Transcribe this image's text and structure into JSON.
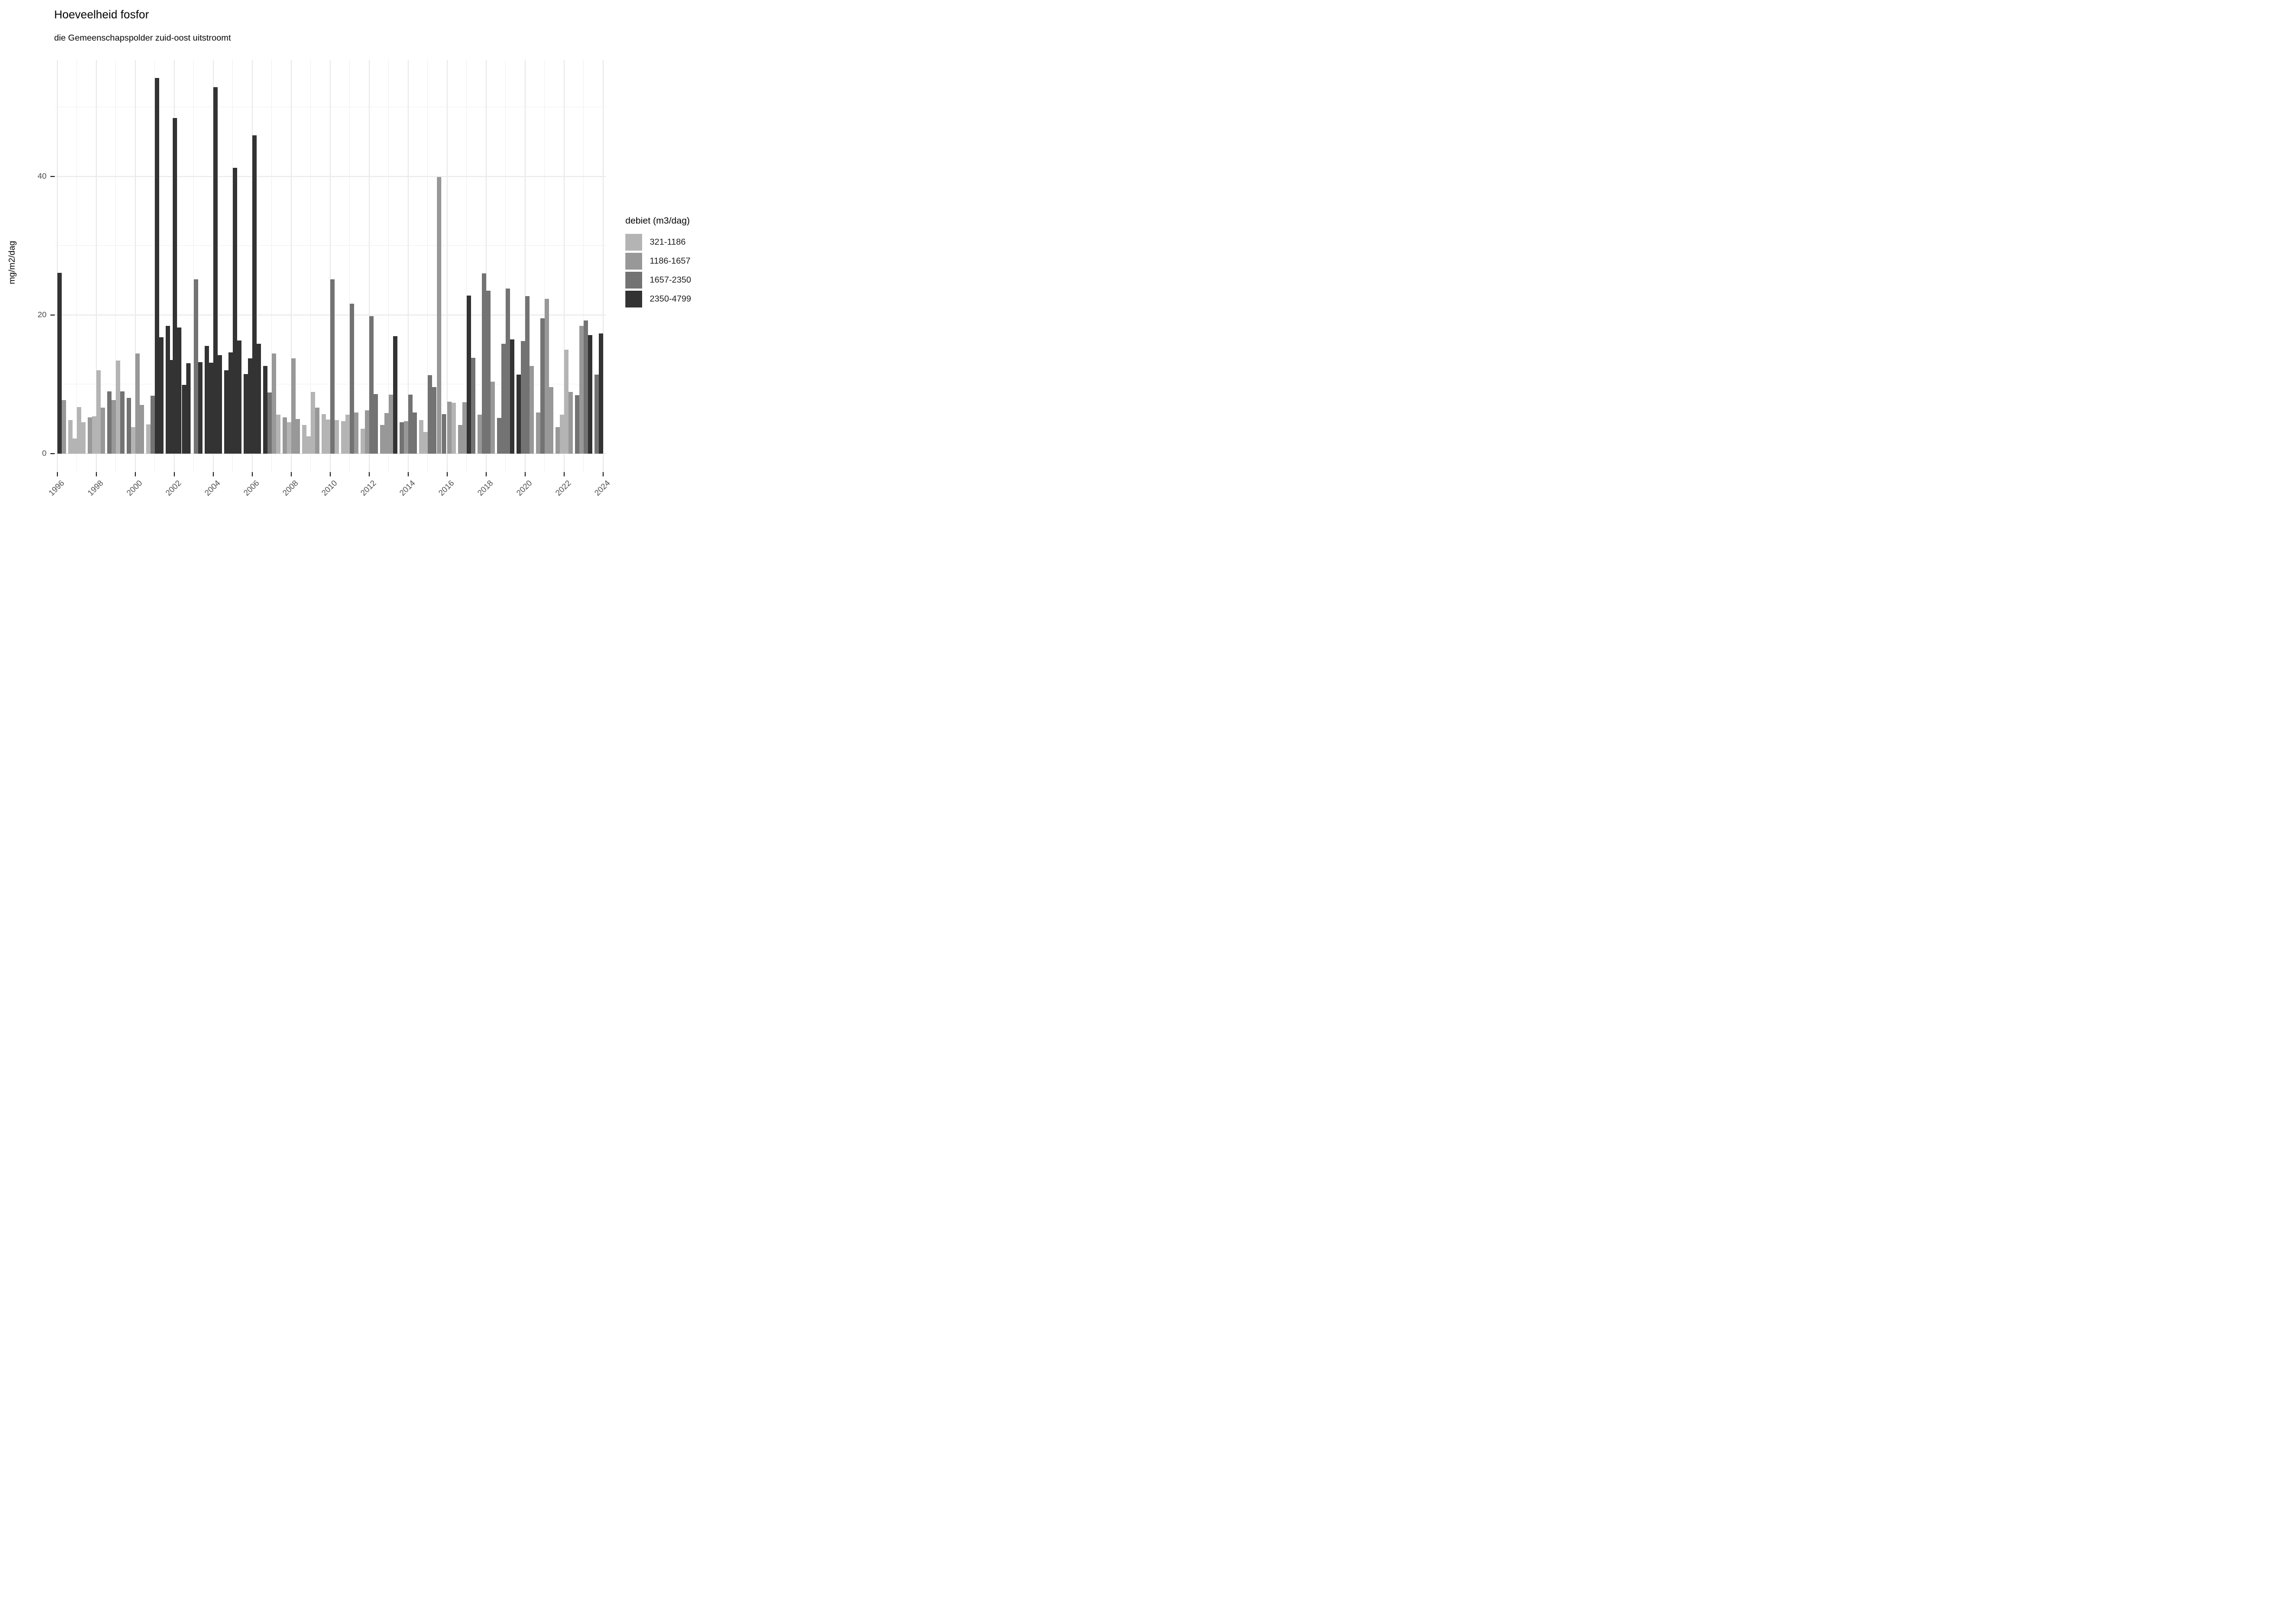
{
  "chart_data": {
    "type": "bar",
    "title": "Hoeveelheid fosfor",
    "subtitle": "die Gemeenschapspolder zuid-oost uitstroomt",
    "ylabel": "mg/m2/dag",
    "xlabel": "",
    "legend_title": "debiet (m3/dag)",
    "legend_position": "right",
    "grid": "on",
    "ylim": [
      0,
      57
    ],
    "y_ticks": [
      0,
      20,
      40
    ],
    "y_minor": [
      10,
      30,
      50
    ],
    "x_ticks": [
      1996,
      1998,
      2000,
      2002,
      2004,
      2006,
      2008,
      2010,
      2012,
      2014,
      2016,
      2018,
      2020,
      2022,
      2024
    ],
    "x_minor": [
      1997,
      1999,
      2001,
      2003,
      2005,
      2007,
      2009,
      2011,
      2013,
      2015,
      2017,
      2019,
      2021,
      2023
    ],
    "x_range": [
      1995.6,
      2024.45
    ],
    "classes": [
      {
        "label": "321-1186",
        "color": "#b4b4b4"
      },
      {
        "label": "1186-1657",
        "color": "#989898"
      },
      {
        "label": "1657-2350",
        "color": "#737373"
      },
      {
        "label": "2350-4799",
        "color": "#333333"
      }
    ],
    "bars_format": "[x_decimal_year, value_mg_m2_dag, debiet_class_index(1-4)]",
    "bars": [
      [
        1996.12,
        26.1,
        4
      ],
      [
        1996.34,
        7.7,
        2
      ],
      [
        1996.67,
        4.8,
        1
      ],
      [
        1996.9,
        2.2,
        1
      ],
      [
        1997.12,
        6.7,
        1
      ],
      [
        1997.34,
        4.5,
        1
      ],
      [
        1997.67,
        5.2,
        2
      ],
      [
        1997.9,
        5.4,
        1
      ],
      [
        1998.12,
        12.0,
        1
      ],
      [
        1998.34,
        6.6,
        2
      ],
      [
        1998.67,
        9.0,
        3
      ],
      [
        1998.9,
        7.7,
        2
      ],
      [
        1999.12,
        13.4,
        1
      ],
      [
        1999.34,
        9.0,
        3
      ],
      [
        1999.67,
        8.0,
        3
      ],
      [
        1999.9,
        3.8,
        1
      ],
      [
        2000.12,
        14.4,
        2
      ],
      [
        2000.34,
        7.0,
        2
      ],
      [
        2000.67,
        4.2,
        1
      ],
      [
        2000.9,
        8.3,
        3
      ],
      [
        2001.12,
        54.2,
        4
      ],
      [
        2001.34,
        16.8,
        4
      ],
      [
        2001.67,
        18.4,
        4
      ],
      [
        2001.9,
        13.5,
        4
      ],
      [
        2002.04,
        48.4,
        4
      ],
      [
        2002.26,
        18.2,
        4
      ],
      [
        2002.5,
        9.9,
        4
      ],
      [
        2002.72,
        13.0,
        4
      ],
      [
        2003.12,
        25.1,
        3
      ],
      [
        2003.34,
        13.2,
        4
      ],
      [
        2003.67,
        15.5,
        4
      ],
      [
        2003.9,
        13.1,
        4
      ],
      [
        2004.12,
        52.9,
        4
      ],
      [
        2004.34,
        14.2,
        4
      ],
      [
        2004.67,
        12.0,
        4
      ],
      [
        2004.9,
        14.6,
        4
      ],
      [
        2005.12,
        41.2,
        4
      ],
      [
        2005.34,
        16.3,
        4
      ],
      [
        2005.67,
        11.5,
        4
      ],
      [
        2005.9,
        13.7,
        4
      ],
      [
        2006.12,
        45.9,
        4
      ],
      [
        2006.34,
        15.8,
        4
      ],
      [
        2006.67,
        12.6,
        4
      ],
      [
        2006.9,
        8.8,
        3
      ],
      [
        2007.12,
        14.4,
        2
      ],
      [
        2007.34,
        5.6,
        1
      ],
      [
        2007.67,
        5.2,
        2
      ],
      [
        2007.9,
        4.5,
        1
      ],
      [
        2008.12,
        13.7,
        2
      ],
      [
        2008.34,
        5.0,
        2
      ],
      [
        2008.67,
        4.1,
        1
      ],
      [
        2008.9,
        2.5,
        1
      ],
      [
        2009.12,
        8.9,
        1
      ],
      [
        2009.34,
        6.6,
        2
      ],
      [
        2009.67,
        5.7,
        1
      ],
      [
        2009.9,
        4.9,
        1
      ],
      [
        2010.12,
        25.1,
        3
      ],
      [
        2010.34,
        4.8,
        1
      ],
      [
        2010.67,
        4.7,
        1
      ],
      [
        2010.9,
        5.6,
        1
      ],
      [
        2011.12,
        21.6,
        3
      ],
      [
        2011.34,
        5.9,
        2
      ],
      [
        2011.67,
        3.6,
        1
      ],
      [
        2011.9,
        6.2,
        2
      ],
      [
        2012.12,
        19.8,
        3
      ],
      [
        2012.34,
        8.6,
        3
      ],
      [
        2012.67,
        4.1,
        2
      ],
      [
        2012.9,
        5.8,
        2
      ],
      [
        2013.12,
        8.5,
        2
      ],
      [
        2013.34,
        16.9,
        4
      ],
      [
        2013.67,
        4.5,
        3
      ],
      [
        2013.9,
        4.7,
        2
      ],
      [
        2014.12,
        8.5,
        3
      ],
      [
        2014.34,
        5.9,
        3
      ],
      [
        2014.67,
        4.8,
        1
      ],
      [
        2014.9,
        3.1,
        1
      ],
      [
        2015.12,
        11.3,
        3
      ],
      [
        2015.34,
        9.6,
        3
      ],
      [
        2015.6,
        39.9,
        2
      ],
      [
        2015.85,
        5.7,
        3
      ],
      [
        2016.12,
        7.5,
        2
      ],
      [
        2016.34,
        7.3,
        1
      ],
      [
        2016.67,
        4.1,
        2
      ],
      [
        2016.9,
        7.4,
        2
      ],
      [
        2017.12,
        22.8,
        4
      ],
      [
        2017.34,
        13.8,
        3
      ],
      [
        2017.67,
        5.6,
        2
      ],
      [
        2017.9,
        26.0,
        3
      ],
      [
        2018.12,
        23.5,
        3
      ],
      [
        2018.34,
        10.4,
        2
      ],
      [
        2018.67,
        5.1,
        3
      ],
      [
        2018.9,
        15.8,
        3
      ],
      [
        2019.12,
        23.8,
        3
      ],
      [
        2019.34,
        16.5,
        4
      ],
      [
        2019.67,
        11.4,
        4
      ],
      [
        2019.9,
        16.2,
        3
      ],
      [
        2020.12,
        22.7,
        3
      ],
      [
        2020.34,
        12.6,
        2
      ],
      [
        2020.67,
        5.9,
        2
      ],
      [
        2020.9,
        19.5,
        3
      ],
      [
        2021.12,
        22.3,
        2
      ],
      [
        2021.34,
        9.6,
        2
      ],
      [
        2021.67,
        3.8,
        2
      ],
      [
        2021.9,
        5.6,
        1
      ],
      [
        2022.12,
        15.0,
        1
      ],
      [
        2022.34,
        8.9,
        2
      ],
      [
        2022.67,
        8.4,
        3
      ],
      [
        2022.9,
        18.4,
        2
      ],
      [
        2023.12,
        19.2,
        3
      ],
      [
        2023.34,
        17.1,
        4
      ],
      [
        2023.67,
        11.4,
        3
      ],
      [
        2023.9,
        17.3,
        4
      ]
    ]
  }
}
